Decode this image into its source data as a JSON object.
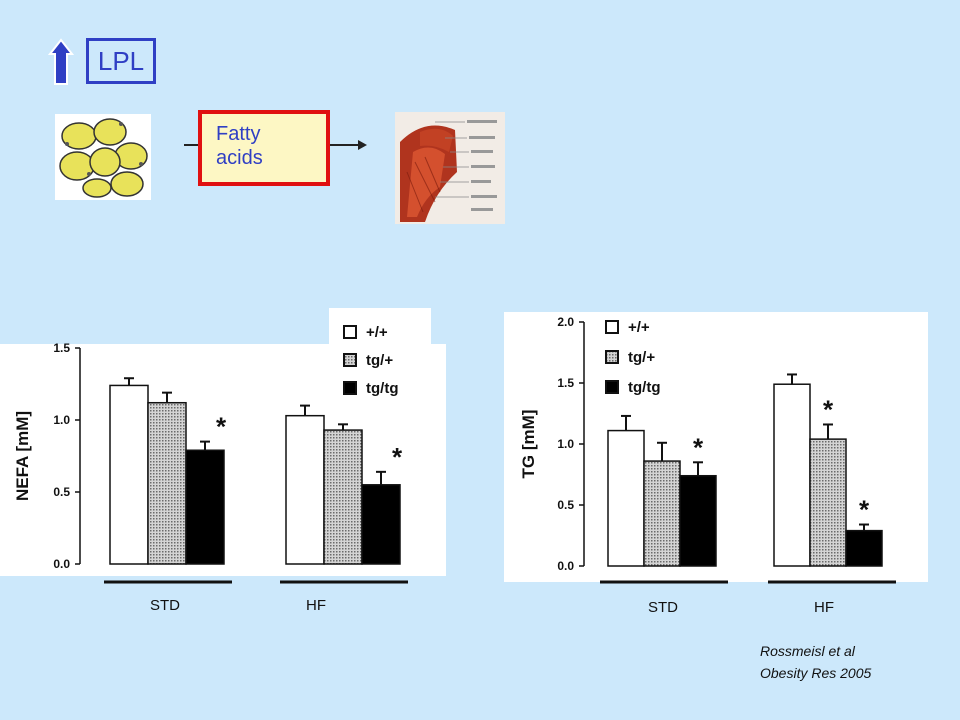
{
  "diagram": {
    "lpl_label": "LPL",
    "fatty_acids_line1": "Fatty",
    "fatty_acids_line2": "acids"
  },
  "legend": {
    "items": [
      "+/+",
      "tg/+",
      "tg/tg"
    ]
  },
  "group_labels": [
    "STD",
    "HF"
  ],
  "citation": {
    "line1": "Rossmeisl et al",
    "line2": "Obesity Res 2005"
  },
  "chart_data": [
    {
      "type": "bar",
      "ylabel": "NEFA [mM]",
      "ylim": [
        0,
        1.5
      ],
      "yticks": [
        "0.0",
        "0.5",
        "1.0",
        "1.5"
      ],
      "categories": [
        "STD",
        "HF"
      ],
      "series": [
        {
          "name": "+/+",
          "values": [
            1.24,
            1.03
          ],
          "errors": [
            0.05,
            0.07
          ]
        },
        {
          "name": "tg/+",
          "values": [
            1.12,
            0.93
          ],
          "errors": [
            0.07,
            0.04
          ]
        },
        {
          "name": "tg/tg",
          "values": [
            0.79,
            0.55
          ],
          "errors": [
            0.06,
            0.09
          ]
        }
      ],
      "significance": [
        [
          false,
          false
        ],
        [
          false,
          false
        ],
        [
          true,
          true
        ]
      ],
      "significance_mark": "*"
    },
    {
      "type": "bar",
      "ylabel": "TG [mM]",
      "ylim": [
        0,
        2.0
      ],
      "yticks": [
        "0.0",
        "0.5",
        "1.0",
        "1.5",
        "2.0"
      ],
      "categories": [
        "STD",
        "HF"
      ],
      "series": [
        {
          "name": "+/+",
          "values": [
            1.11,
            1.49
          ],
          "errors": [
            0.12,
            0.08
          ]
        },
        {
          "name": "tg/+",
          "values": [
            0.86,
            1.04
          ],
          "errors": [
            0.15,
            0.12
          ]
        },
        {
          "name": "tg/tg",
          "values": [
            0.74,
            0.29
          ],
          "errors": [
            0.11,
            0.05
          ]
        }
      ],
      "significance": [
        [
          false,
          false
        ],
        [
          false,
          true
        ],
        [
          true,
          true
        ]
      ],
      "significance_mark": "*"
    }
  ]
}
